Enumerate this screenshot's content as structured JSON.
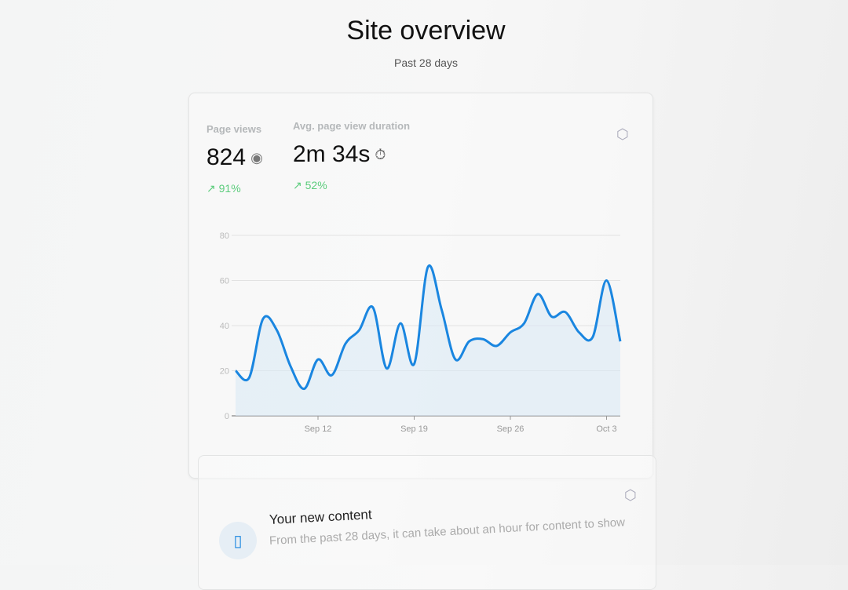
{
  "header": {
    "title": "Site overview",
    "subtitle": "Past 28 days"
  },
  "metrics": [
    {
      "label": "Page views",
      "value": "824",
      "icon": "eye-icon",
      "change": "91%",
      "trend": "up"
    },
    {
      "label": "Avg. page view duration",
      "value": "2m 34s",
      "icon": "stopwatch-icon",
      "change": "52%",
      "trend": "up"
    }
  ],
  "colors": {
    "line": "#1a86e0",
    "fill": "#dbe9f5",
    "positive": "#5ccc7c"
  },
  "chart_data": {
    "type": "area",
    "x": [
      "Sep 6",
      "Sep 7",
      "Sep 8",
      "Sep 9",
      "Sep 10",
      "Sep 11",
      "Sep 12",
      "Sep 13",
      "Sep 14",
      "Sep 15",
      "Sep 16",
      "Sep 17",
      "Sep 18",
      "Sep 19",
      "Sep 20",
      "Sep 21",
      "Sep 22",
      "Sep 23",
      "Sep 24",
      "Sep 25",
      "Sep 26",
      "Sep 27",
      "Sep 28",
      "Sep 29",
      "Sep 30",
      "Oct 1",
      "Oct 2",
      "Oct 3",
      "Oct 4"
    ],
    "values": [
      20,
      17,
      43,
      38,
      22,
      12,
      25,
      18,
      32,
      38,
      48,
      21,
      41,
      23,
      66,
      47,
      25,
      33,
      34,
      31,
      37,
      41,
      54,
      44,
      46,
      37,
      35,
      60,
      33
    ],
    "xticks": [
      "Sep 12",
      "Sep 19",
      "Sep 26",
      "Oct 3"
    ],
    "yticks": [
      "0",
      "20",
      "40",
      "60",
      "80"
    ],
    "ylim": [
      0,
      80
    ],
    "grid": true
  },
  "content_card": {
    "title": "Your new content",
    "subtitle": "From the past 28 days, it can take about an hour for content to show"
  }
}
